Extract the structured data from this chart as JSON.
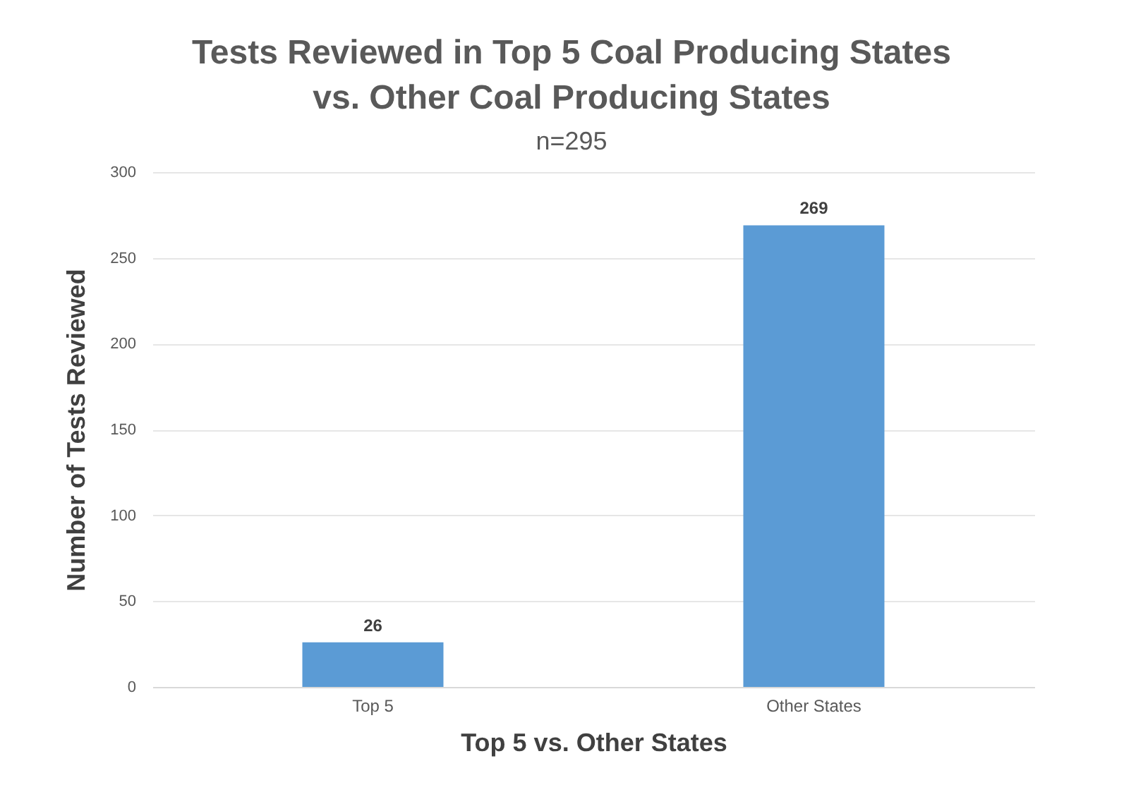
{
  "chart_data": {
    "type": "bar",
    "title": "Tests Reviewed in Top 5 Coal Producing States vs. Other Coal Producing States",
    "subtitle": "n=295",
    "xlabel": "Top 5 vs. Other States",
    "ylabel": "Number of Tests Reviewed",
    "categories": [
      "Top 5",
      "Other States"
    ],
    "values": [
      26,
      269
    ],
    "color": "#5b9bd5",
    "ylim": [
      0,
      300
    ],
    "yticks": [
      0,
      50,
      100,
      150,
      200,
      250,
      300
    ],
    "grid": "y",
    "data_labels": true
  }
}
